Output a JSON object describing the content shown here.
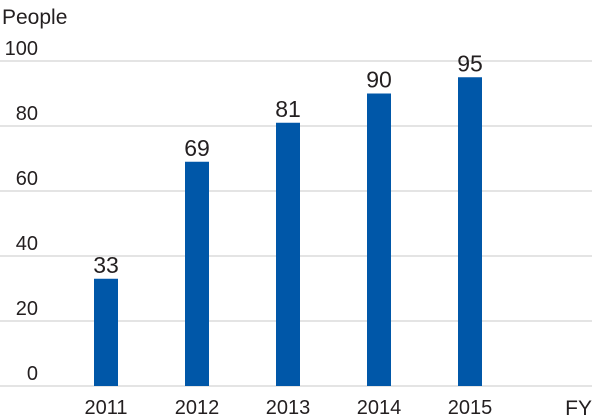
{
  "chart_data": {
    "type": "bar",
    "title": "",
    "ylabel": "People",
    "xlabel": "FY",
    "categories": [
      "2011",
      "2012",
      "2013",
      "2014",
      "2015"
    ],
    "values": [
      33,
      69,
      81,
      90,
      95
    ],
    "data_labels": [
      "33",
      "69",
      "81",
      "90",
      "95"
    ],
    "ylim": [
      0,
      100
    ],
    "yticks": [
      0,
      20,
      40,
      60,
      80,
      100
    ],
    "ytick_labels": [
      "0",
      "20",
      "40",
      "60",
      "80",
      "100"
    ],
    "grid": true,
    "legend": "none",
    "bar_color": "#0057a8",
    "grid_color": "#c8c8c8"
  }
}
